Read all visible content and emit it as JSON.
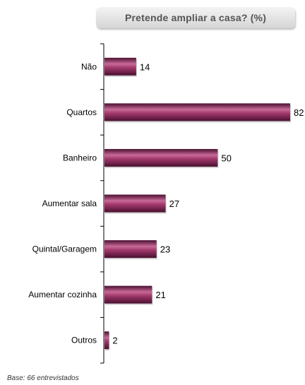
{
  "chart_data": {
    "type": "bar",
    "orientation": "horizontal",
    "title": "Pretende ampliar a casa? (%)",
    "categories": [
      "Não",
      "Quartos",
      "Banheiro",
      "Aumentar sala",
      "Quintal/Garagem",
      "Aumentar cozinha",
      "Outros"
    ],
    "values": [
      14,
      82,
      50,
      27,
      23,
      21,
      2
    ],
    "xlim": [
      0,
      82
    ],
    "grid": false,
    "legend": "none",
    "colors": {
      "bar_dark": "#4a0f30",
      "bar_mid": "#a33a6e",
      "bar_light": "#c96a98"
    }
  },
  "footnote": "Base: 66 entrevistados"
}
